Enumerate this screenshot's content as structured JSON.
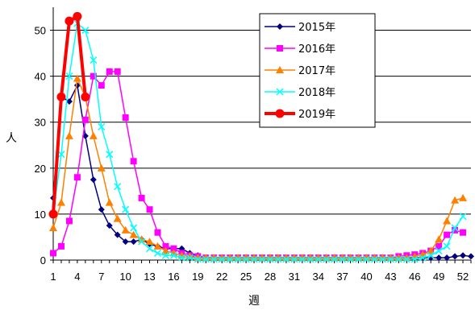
{
  "chart_data": {
    "type": "line",
    "title": "",
    "xlabel": "週",
    "ylabel": "人",
    "xlim": [
      1,
      53
    ],
    "ylim": [
      0,
      55
    ],
    "x_ticks": [
      1,
      4,
      7,
      10,
      13,
      16,
      19,
      22,
      25,
      28,
      31,
      34,
      37,
      40,
      43,
      46,
      49,
      52
    ],
    "y_ticks": [
      0,
      10,
      20,
      30,
      40,
      50
    ],
    "grid": "horizontal",
    "legend_position": "top-right",
    "series": [
      {
        "name": "2015年",
        "color": "#000080",
        "marker": "diamond",
        "line_width": 1.5,
        "x": [
          1,
          2,
          3,
          4,
          5,
          6,
          7,
          8,
          9,
          10,
          11,
          12,
          13,
          14,
          15,
          16,
          17,
          18,
          19,
          20,
          21,
          22,
          23,
          24,
          25,
          26,
          27,
          28,
          29,
          30,
          31,
          32,
          33,
          34,
          35,
          36,
          37,
          38,
          39,
          40,
          41,
          42,
          43,
          44,
          45,
          46,
          47,
          48,
          49,
          50,
          51,
          52,
          53
        ],
        "values": [
          13.5,
          35.5,
          34.5,
          38,
          27,
          17.5,
          11,
          7.5,
          5.5,
          4,
          4,
          4.5,
          3.5,
          3,
          2.5,
          2.5,
          2.5,
          1.5,
          1,
          0.5,
          0.5,
          0.5,
          0.5,
          0.5,
          0.5,
          0.5,
          0.5,
          0.5,
          0.5,
          0.5,
          0.5,
          0.5,
          0.5,
          0.5,
          0.5,
          0.5,
          0.5,
          0.5,
          0.5,
          0.5,
          0.5,
          0.5,
          0.5,
          0.5,
          0.5,
          0.5,
          0.5,
          0.5,
          0.5,
          0.5,
          0.8,
          1,
          0.8
        ]
      },
      {
        "name": "2016年",
        "color": "#ff00ff",
        "marker": "square",
        "line_width": 1.5,
        "x": [
          1,
          2,
          3,
          4,
          5,
          6,
          7,
          8,
          9,
          10,
          11,
          12,
          13,
          14,
          15,
          16,
          17,
          18,
          19,
          20,
          21,
          22,
          23,
          24,
          25,
          26,
          27,
          28,
          29,
          30,
          31,
          32,
          33,
          34,
          35,
          36,
          37,
          38,
          39,
          40,
          41,
          42,
          43,
          44,
          45,
          46,
          47,
          48,
          49,
          50,
          51,
          52
        ],
        "values": [
          1.5,
          3,
          8.5,
          18,
          30.5,
          40,
          38,
          41,
          41,
          31,
          21.5,
          13.5,
          11,
          6,
          3,
          2.5,
          1.5,
          1,
          0.8,
          0.5,
          0.5,
          0.5,
          0.5,
          0.5,
          0.5,
          0.5,
          0.5,
          0.5,
          0.5,
          0.5,
          0.5,
          0.5,
          0.5,
          0.5,
          0.5,
          0.5,
          0.5,
          0.5,
          0.5,
          0.5,
          0.5,
          0.5,
          0.5,
          0.8,
          1,
          1.2,
          1.5,
          2,
          3,
          5.5,
          6.5,
          6
        ]
      },
      {
        "name": "2017年",
        "color": "#ff8000",
        "marker": "triangle",
        "line_width": 1.5,
        "x": [
          1,
          2,
          3,
          4,
          5,
          6,
          7,
          8,
          9,
          10,
          11,
          12,
          13,
          14,
          15,
          16,
          17,
          18,
          19,
          20,
          21,
          22,
          23,
          24,
          25,
          26,
          27,
          28,
          29,
          30,
          31,
          32,
          33,
          34,
          35,
          36,
          37,
          38,
          39,
          40,
          41,
          42,
          43,
          44,
          45,
          46,
          47,
          48,
          49,
          50,
          51,
          52
        ],
        "values": [
          7,
          12.5,
          27,
          39.5,
          35.5,
          27,
          20,
          12.5,
          9,
          6.5,
          5.5,
          4.5,
          4,
          3,
          2,
          1.5,
          1,
          0.8,
          0.5,
          0.5,
          0.5,
          0.5,
          0.5,
          0.5,
          0.5,
          0.5,
          0.5,
          0.5,
          0.5,
          0.5,
          0.5,
          0.5,
          0.5,
          0.5,
          0.5,
          0.5,
          0.5,
          0.5,
          0.5,
          0.5,
          0.5,
          0.5,
          0.5,
          0.5,
          0.5,
          0.8,
          1.2,
          2,
          4.5,
          8.5,
          13,
          13.5
        ]
      },
      {
        "name": "2018年",
        "color": "#00ffff",
        "marker": "x",
        "line_width": 1.5,
        "x": [
          1,
          2,
          3,
          4,
          5,
          6,
          7,
          8,
          9,
          10,
          11,
          12,
          13,
          14,
          15,
          16,
          17,
          18,
          19,
          20,
          21,
          22,
          23,
          24,
          25,
          26,
          27,
          28,
          29,
          30,
          31,
          32,
          33,
          34,
          35,
          36,
          37,
          38,
          39,
          40,
          41,
          42,
          43,
          44,
          45,
          46,
          47,
          48,
          49,
          50,
          51,
          52
        ],
        "values": [
          10,
          23,
          40,
          51.5,
          50,
          43.5,
          29,
          23,
          16,
          11,
          7,
          4,
          2.5,
          1.5,
          1,
          1,
          0.5,
          0.5,
          0.2,
          0.2,
          0.2,
          0.2,
          0.2,
          0.2,
          0.2,
          0.2,
          0.2,
          0.2,
          0.2,
          0.2,
          0.2,
          0.2,
          0.2,
          0.2,
          0.2,
          0.2,
          0.2,
          0.2,
          0.2,
          0.2,
          0.2,
          0.2,
          0.2,
          0.2,
          0.2,
          0.2,
          0.5,
          1,
          2,
          3,
          7,
          9.5
        ]
      },
      {
        "name": "2019年",
        "color": "#ff0000",
        "marker": "circle",
        "line_width": 4,
        "x": [
          1,
          2,
          3,
          4,
          5
        ],
        "values": [
          10,
          35.5,
          52,
          53,
          35.5
        ]
      }
    ]
  }
}
